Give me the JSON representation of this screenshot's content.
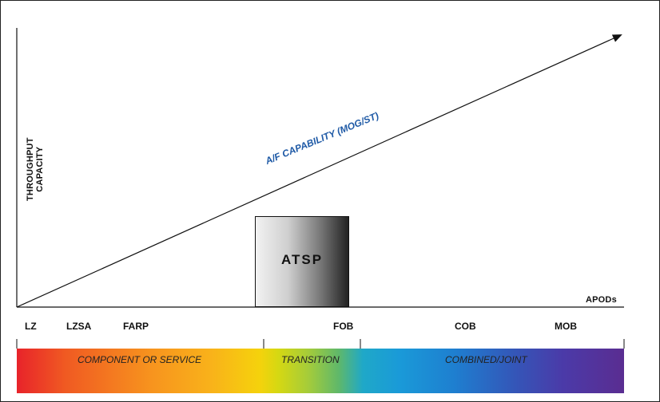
{
  "axis": {
    "y_title_line1": "THROUGHPUT",
    "y_title_line2": "CAPACITY",
    "x_title": "APODs"
  },
  "diagonal": {
    "label": "A/F CAPABILITY (MOG/ST)",
    "color": "#1f5aa6"
  },
  "box": {
    "label": "ATSP"
  },
  "sites": [
    {
      "label": "LZ"
    },
    {
      "label": "LZSA"
    },
    {
      "label": "FARP"
    },
    {
      "label": "FOB"
    },
    {
      "label": "COB"
    },
    {
      "label": "MOB"
    }
  ],
  "phases": [
    {
      "label": "COMPONENT OR SERVICE"
    },
    {
      "label": "TRANSITION"
    },
    {
      "label": "COMBINED/JOINT"
    }
  ]
}
